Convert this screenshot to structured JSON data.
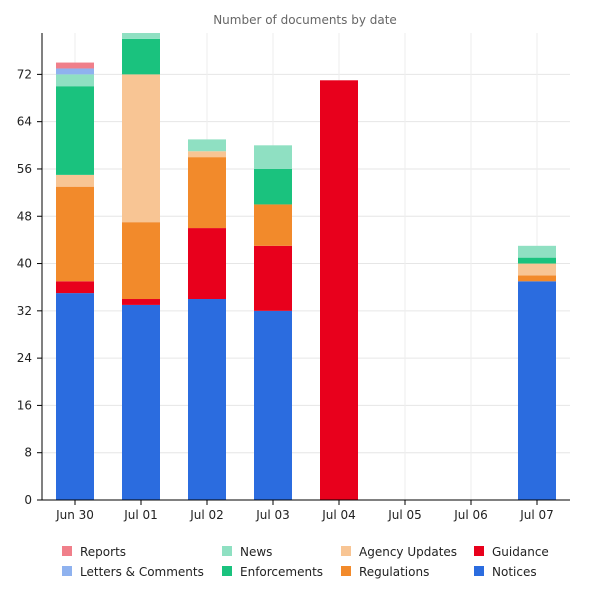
{
  "chart_data": {
    "type": "bar",
    "stacked": true,
    "title": "Number of documents by date",
    "xlabel": "",
    "ylabel": "",
    "ylim": [
      0,
      79
    ],
    "yticks": [
      0,
      8,
      16,
      24,
      32,
      40,
      48,
      56,
      64,
      72
    ],
    "grid": true,
    "legend_position": "bottom",
    "categories": [
      "Jun 30",
      "Jul 01",
      "Jul 02",
      "Jul 03",
      "Jul 04",
      "Jul 05",
      "Jul 06",
      "Jul 07"
    ],
    "series": [
      {
        "name": "Notices",
        "color": "#2b6cdf",
        "values": [
          35,
          33,
          34,
          32,
          0,
          0,
          0,
          37
        ]
      },
      {
        "name": "Guidance",
        "color": "#e8001c",
        "values": [
          2,
          1,
          12,
          11,
          71,
          0,
          0,
          0
        ]
      },
      {
        "name": "Regulations",
        "color": "#f28a2b",
        "values": [
          16,
          13,
          12,
          7,
          0,
          0,
          0,
          1
        ]
      },
      {
        "name": "Agency Updates",
        "color": "#f8c594",
        "values": [
          2,
          25,
          1,
          0,
          0,
          0,
          0,
          2
        ]
      },
      {
        "name": "Enforcements",
        "color": "#1ac27e",
        "values": [
          15,
          6,
          0,
          6,
          0,
          0,
          0,
          1
        ]
      },
      {
        "name": "News",
        "color": "#8fe0c2",
        "values": [
          2,
          2,
          2,
          4,
          0,
          0,
          0,
          2
        ]
      },
      {
        "name": "Letters & Comments",
        "color": "#8fb2ef",
        "values": [
          1,
          0,
          0,
          0,
          0,
          0,
          0,
          0
        ]
      },
      {
        "name": "Reports",
        "color": "#f07f8a",
        "values": [
          1,
          0,
          0,
          0,
          0,
          0,
          0,
          0
        ]
      }
    ],
    "legend_order": [
      "Reports",
      "News",
      "Agency Updates",
      "Guidance",
      "Letters & Comments",
      "Enforcements",
      "Regulations",
      "Notices"
    ]
  }
}
